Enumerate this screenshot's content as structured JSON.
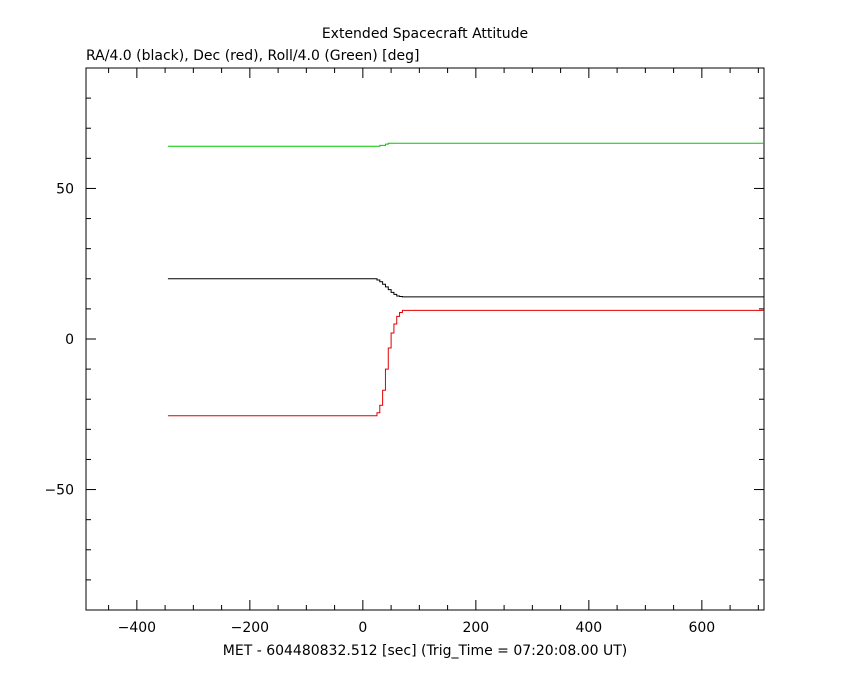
{
  "chart_data": {
    "type": "line",
    "title": "Extended Spacecraft Attitude",
    "subtitle": "RA/4.0 (black), Dec (red), Roll/4.0 (Green) [deg]",
    "xlabel": "MET - 604480832.512 [sec] (Trig_Time = 07:20:08.00 UT)",
    "ylabel": "",
    "xlim": [
      -490,
      710
    ],
    "ylim": [
      -90,
      90
    ],
    "x_ticks": [
      -400,
      -200,
      0,
      200,
      400,
      600
    ],
    "x_tick_labels": [
      "−400",
      "−200",
      "0",
      "200",
      "400",
      "600"
    ],
    "y_ticks": [
      -50,
      0,
      50
    ],
    "y_tick_labels": [
      "−50",
      "0",
      "50"
    ],
    "series": [
      {
        "name": "RA/4.0",
        "color": "#000000",
        "points": [
          [
            -345,
            20
          ],
          [
            20,
            20
          ],
          [
            25,
            19.6
          ],
          [
            30,
            19
          ],
          [
            35,
            18.2
          ],
          [
            40,
            17.3
          ],
          [
            45,
            16.4
          ],
          [
            50,
            15.5
          ],
          [
            55,
            14.8
          ],
          [
            60,
            14.3
          ],
          [
            65,
            14.1
          ],
          [
            70,
            14
          ],
          [
            710,
            14
          ]
        ]
      },
      {
        "name": "Dec",
        "color": "#e00000",
        "points": [
          [
            -345,
            -25.5
          ],
          [
            20,
            -25.5
          ],
          [
            25,
            -24.5
          ],
          [
            30,
            -22
          ],
          [
            35,
            -17
          ],
          [
            40,
            -10
          ],
          [
            45,
            -3
          ],
          [
            50,
            2
          ],
          [
            55,
            5
          ],
          [
            60,
            7.5
          ],
          [
            65,
            8.8
          ],
          [
            70,
            9.5
          ],
          [
            710,
            9.5
          ]
        ]
      },
      {
        "name": "Roll/4.0",
        "color": "#00c800",
        "points": [
          [
            -345,
            64
          ],
          [
            20,
            64
          ],
          [
            30,
            64.3
          ],
          [
            40,
            64.7
          ],
          [
            45,
            65
          ],
          [
            710,
            65
          ]
        ]
      }
    ]
  }
}
